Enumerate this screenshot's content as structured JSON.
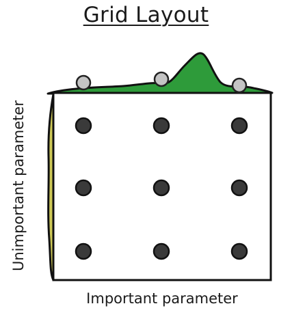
{
  "title": "Grid Layout",
  "axes": {
    "x_label": "Important parameter",
    "y_label": "Unimportant parameter"
  },
  "colors": {
    "top_distribution": "#2e9b3a",
    "side_distribution": "#cdc856",
    "sample_point": "#3a3a3a",
    "projected_sample": "#c4c4c4",
    "frame": "#111111"
  },
  "grid": {
    "rows": 3,
    "cols": 3
  }
}
